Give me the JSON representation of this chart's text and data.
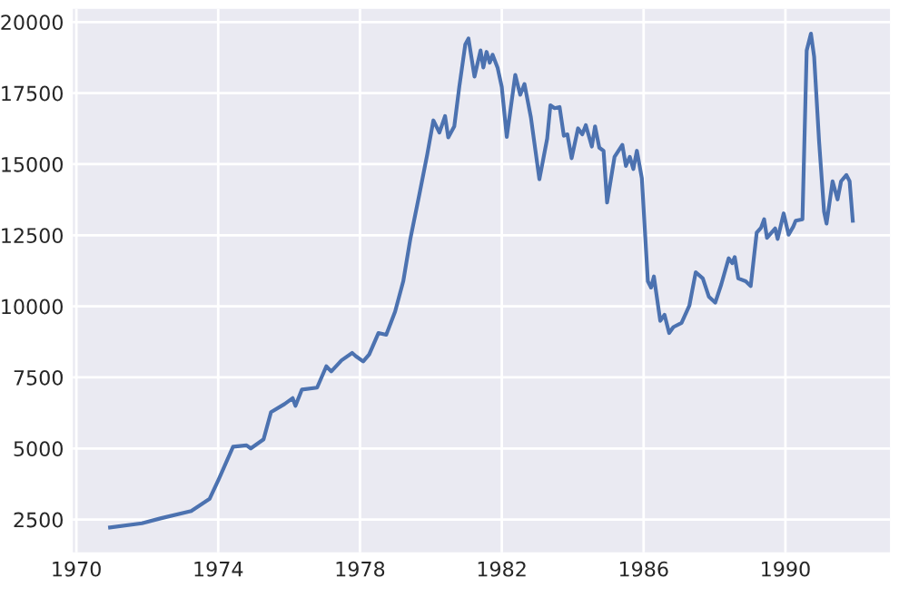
{
  "chart_data": {
    "type": "line",
    "x": [
      1970.95,
      1971.85,
      1972.37,
      1973.24,
      1973.76,
      1974.02,
      1974.42,
      1974.8,
      1974.92,
      1975.28,
      1975.49,
      1975.87,
      1976.1,
      1976.18,
      1976.36,
      1976.79,
      1977.05,
      1977.19,
      1977.48,
      1977.78,
      1977.88,
      1978.09,
      1978.26,
      1978.52,
      1978.74,
      1978.99,
      1979.22,
      1979.42,
      1979.68,
      1979.9,
      1980.07,
      1980.24,
      1980.4,
      1980.49,
      1980.66,
      1980.8,
      1980.97,
      1981.06,
      1981.23,
      1981.4,
      1981.48,
      1981.57,
      1981.66,
      1981.74,
      1981.88,
      1982.0,
      1982.14,
      1982.38,
      1982.52,
      1982.64,
      1982.82,
      1983.06,
      1983.28,
      1983.37,
      1983.49,
      1983.63,
      1983.75,
      1983.85,
      1983.97,
      1984.15,
      1984.27,
      1984.37,
      1984.54,
      1984.63,
      1984.75,
      1984.87,
      1984.97,
      1985.18,
      1985.4,
      1985.5,
      1985.61,
      1985.71,
      1985.81,
      1985.95,
      1986.12,
      1986.21,
      1986.29,
      1986.47,
      1986.59,
      1986.72,
      1986.84,
      1987.07,
      1987.29,
      1987.47,
      1987.67,
      1987.84,
      1988.02,
      1988.19,
      1988.4,
      1988.5,
      1988.57,
      1988.67,
      1988.88,
      1989.02,
      1989.19,
      1989.31,
      1989.4,
      1989.48,
      1989.71,
      1989.78,
      1989.95,
      1990.09,
      1990.22,
      1990.29,
      1990.48,
      1990.6,
      1990.72,
      1990.81,
      1990.95,
      1991.09,
      1991.16,
      1991.33,
      1991.47,
      1991.57,
      1991.72,
      1991.81,
      1991.9
    ],
    "series": [
      {
        "color": "#4c72b0",
        "values": [
          2220,
          2370,
          2540,
          2800,
          3230,
          3930,
          5060,
          5110,
          5000,
          5320,
          6280,
          6560,
          6770,
          6500,
          7070,
          7140,
          7890,
          7710,
          8100,
          8360,
          8250,
          8060,
          8310,
          9060,
          9000,
          9810,
          10880,
          12370,
          13970,
          15360,
          16540,
          16110,
          16690,
          15940,
          16330,
          17710,
          19210,
          19420,
          18080,
          19000,
          18400,
          18950,
          18570,
          18850,
          18400,
          17710,
          15960,
          18140,
          17440,
          17820,
          16650,
          14470,
          15900,
          17070,
          16970,
          17010,
          16000,
          16050,
          15210,
          16260,
          16050,
          16370,
          15620,
          16330,
          15580,
          15470,
          13650,
          15260,
          15680,
          14940,
          15260,
          14830,
          15470,
          14510,
          10880,
          10660,
          11050,
          9490,
          9700,
          9060,
          9270,
          9420,
          10020,
          11200,
          10980,
          10340,
          10130,
          10770,
          11690,
          11520,
          11730,
          10980,
          10880,
          10710,
          12590,
          12760,
          13060,
          12410,
          12740,
          12370,
          13270,
          12520,
          12800,
          13010,
          13060,
          19000,
          19590,
          18780,
          15790,
          13330,
          12910,
          14400,
          13760,
          14400,
          14620,
          14400,
          13010
        ]
      }
    ],
    "xlim": [
      1969.9,
      1992.95
    ],
    "ylim": [
      1350,
      20460
    ],
    "xticks": [
      1970,
      1974,
      1978,
      1982,
      1986,
      1990
    ],
    "yticks": [
      2500,
      5000,
      7500,
      10000,
      12500,
      15000,
      17500,
      20000
    ],
    "grid": true
  }
}
